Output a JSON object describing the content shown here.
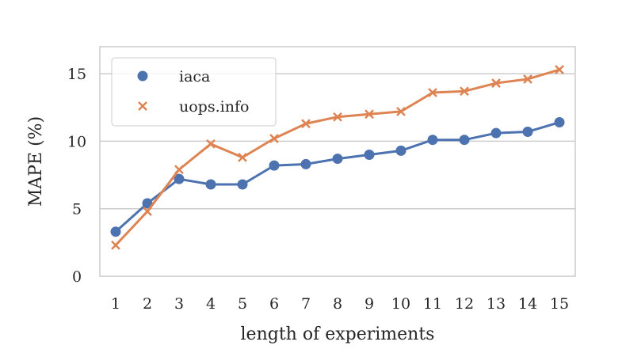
{
  "chart_data": {
    "type": "line",
    "title": "",
    "xlabel": "length of experiments",
    "ylabel": "MAPE (%)",
    "x": [
      1,
      2,
      3,
      4,
      5,
      6,
      7,
      8,
      9,
      10,
      11,
      12,
      13,
      14,
      15
    ],
    "xlim": [
      0.5,
      15.5
    ],
    "ylim": [
      0,
      17
    ],
    "yticks": [
      0,
      5,
      10,
      15
    ],
    "grid": "horizontal",
    "legend_position": "top-left",
    "series": [
      {
        "name": "iaca",
        "marker": "circle",
        "color": "#4c72b0",
        "values": [
          3.3,
          5.4,
          7.2,
          6.8,
          6.8,
          8.2,
          8.3,
          8.7,
          9.0,
          9.3,
          10.1,
          10.1,
          10.6,
          10.7,
          11.4
        ]
      },
      {
        "name": "uops.info",
        "marker": "x",
        "color": "#dd8452",
        "values": [
          2.3,
          4.8,
          7.9,
          9.8,
          8.8,
          10.2,
          11.3,
          11.8,
          12.0,
          12.2,
          13.6,
          13.7,
          14.3,
          14.6,
          15.3
        ]
      }
    ]
  }
}
